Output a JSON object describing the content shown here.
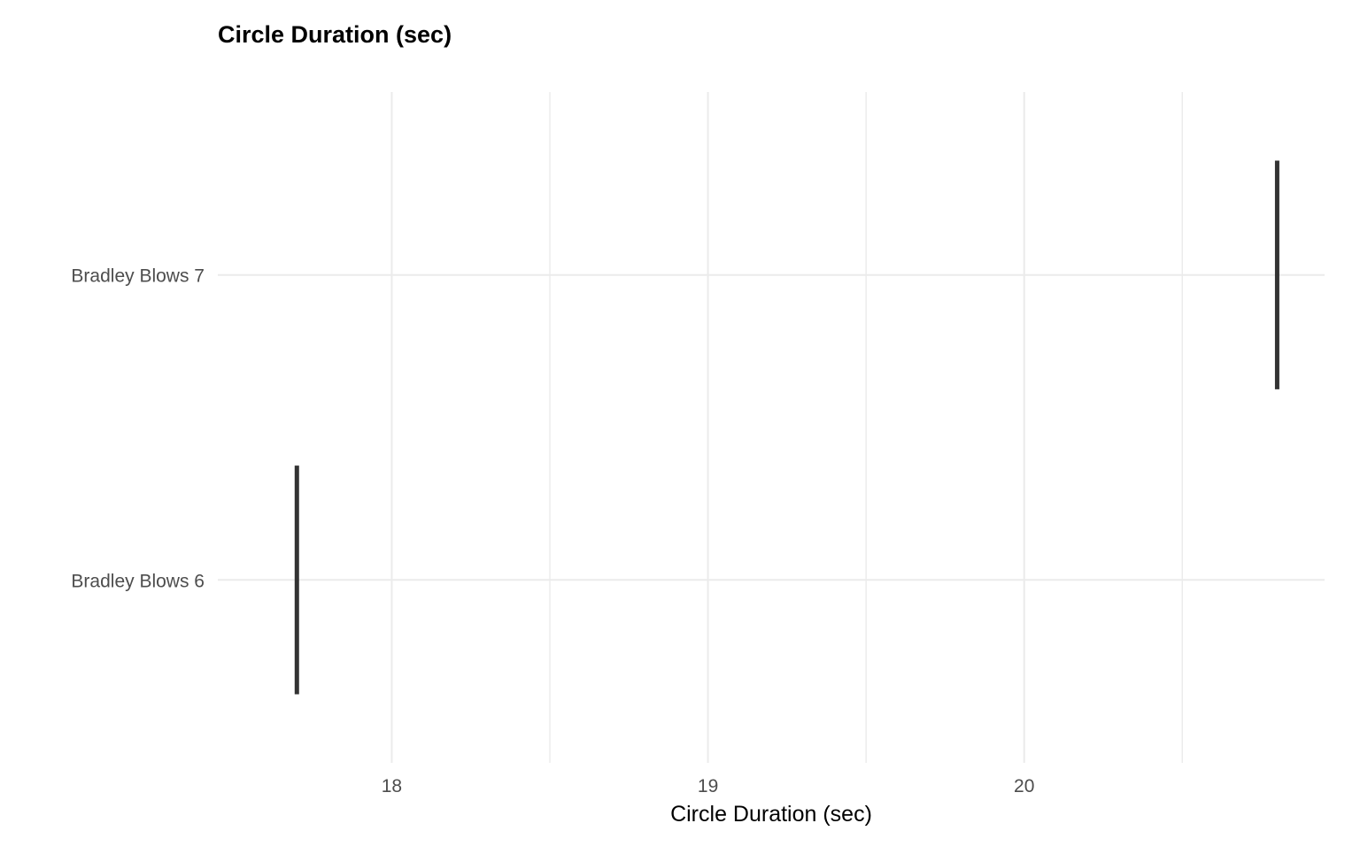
{
  "chart_data": {
    "type": "errorbar",
    "title": "Circle Duration (sec)",
    "xlabel": "Circle Duration (sec)",
    "ylabel": "",
    "xlim": [
      17.45,
      20.95
    ],
    "x_ticks": [
      18,
      19,
      20
    ],
    "x_minor_ticks": [
      18.5,
      19.5,
      20.5
    ],
    "grid": true,
    "categories": [
      "Bradley Blows 6",
      "Bradley Blows 7"
    ],
    "series": [
      {
        "values": [
          17.7,
          20.8
        ],
        "color": "#333333"
      }
    ]
  }
}
